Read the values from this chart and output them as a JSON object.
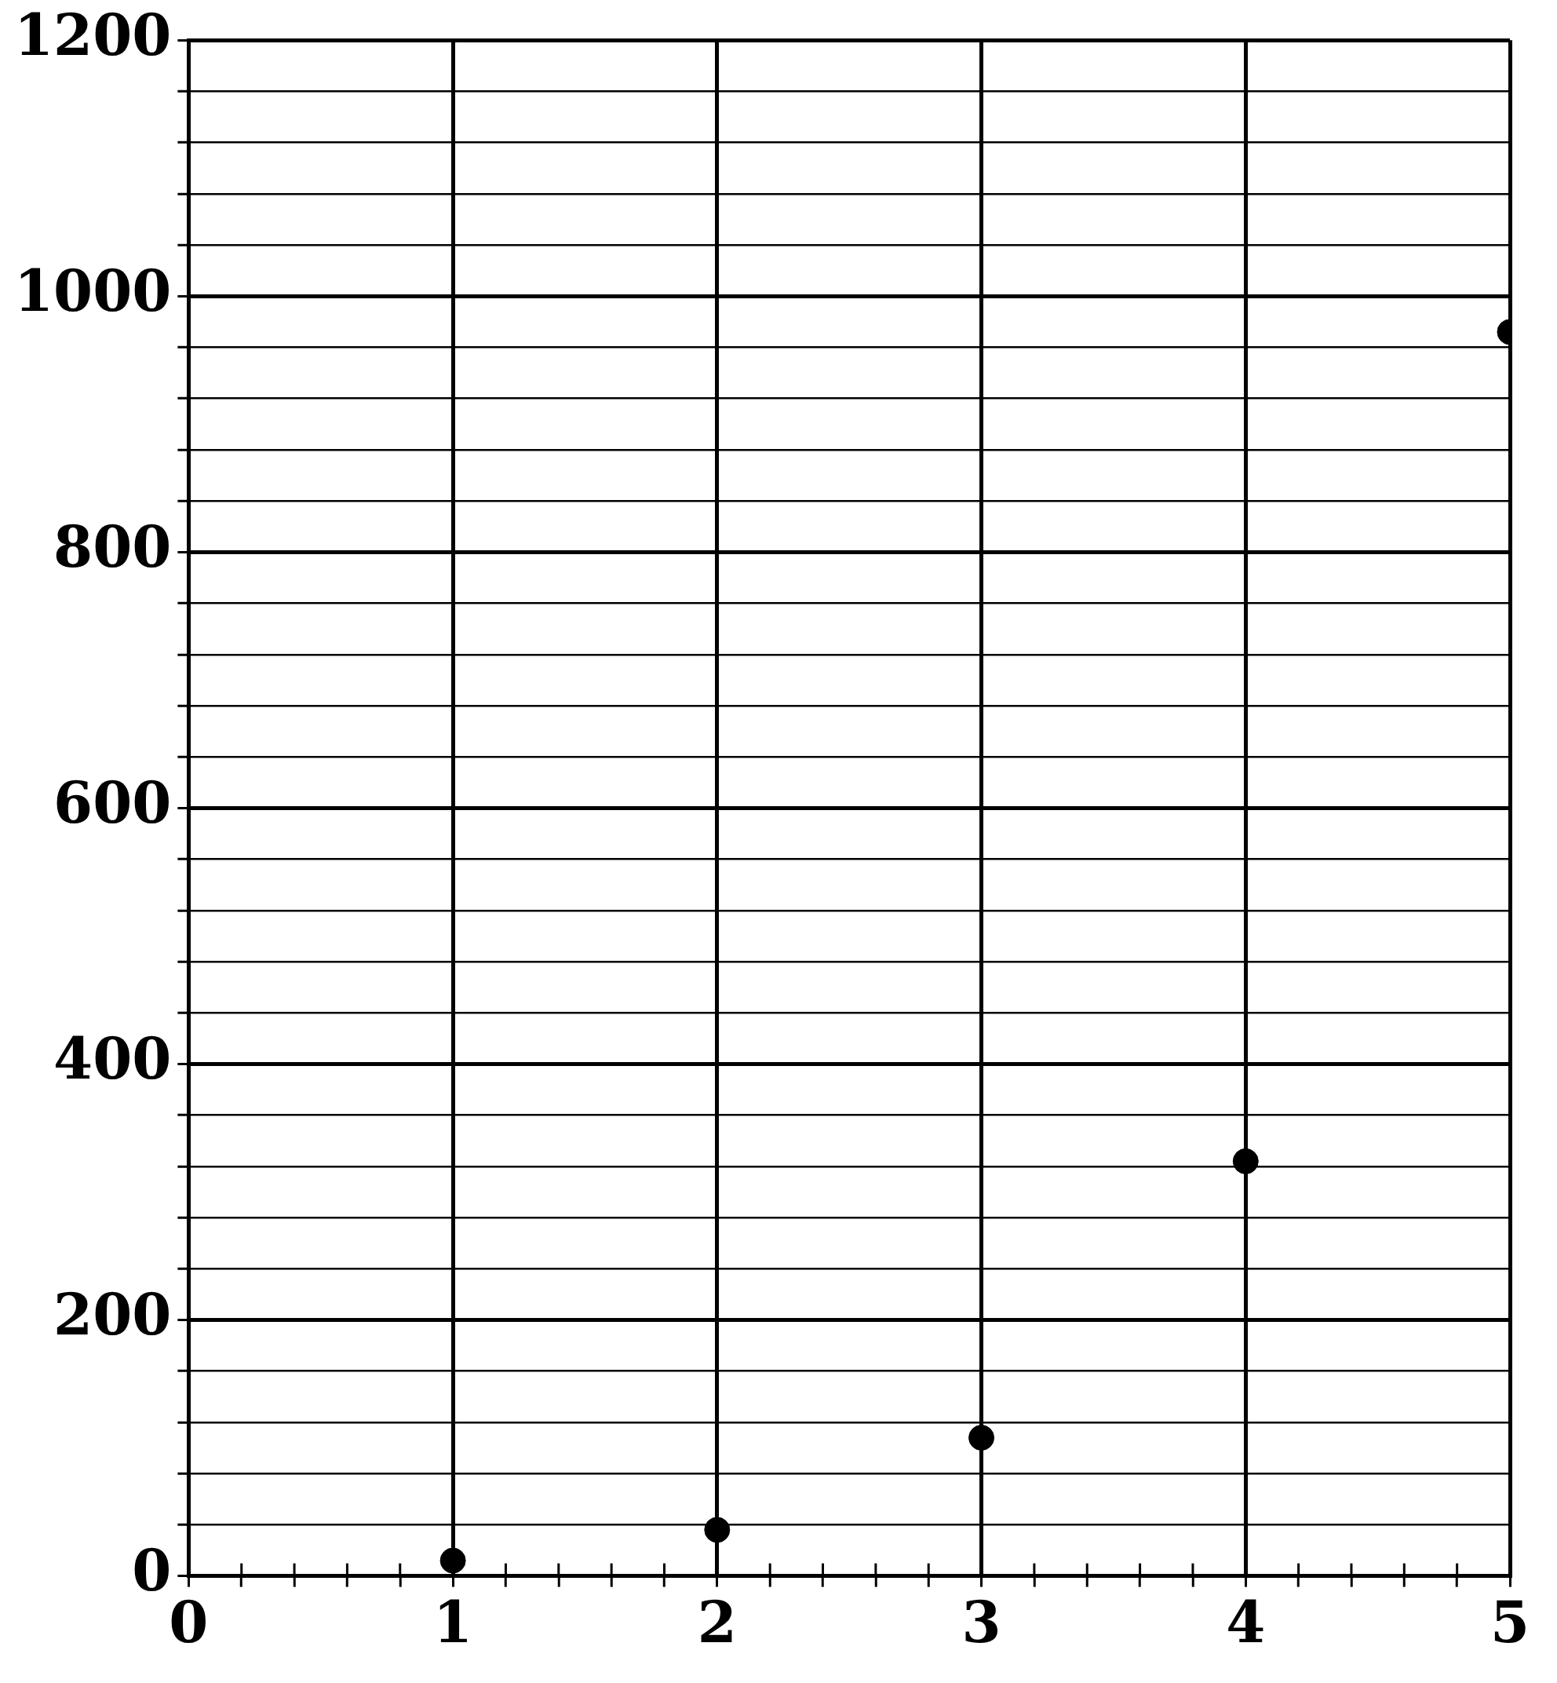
{
  "chart_data": {
    "type": "scatter",
    "x": [
      1,
      2,
      3,
      4,
      5
    ],
    "values": [
      12,
      36,
      108,
      324,
      972
    ],
    "color": "#000000",
    "marker": "circle",
    "xlim": [
      0,
      5
    ],
    "ylim": [
      0,
      1200
    ],
    "xticks": [
      0,
      {
        "value": 0.2,
        "label": null
      },
      {
        "value": 0.4,
        "label": null
      },
      {
        "value": 0.6,
        "label": null
      },
      {
        "value": 0.8,
        "label": null
      },
      1,
      {
        "value": 1.2,
        "label": null
      },
      {
        "value": 1.4,
        "label": null
      },
      {
        "value": 1.6,
        "label": null
      },
      {
        "value": 1.8,
        "label": null
      },
      2,
      {
        "value": 2.2,
        "label": null
      },
      {
        "value": 2.4,
        "label": null
      },
      {
        "value": 2.6,
        "label": null
      },
      {
        "value": 2.8,
        "label": null
      },
      3,
      {
        "value": 3.2,
        "label": null
      },
      {
        "value": 3.4,
        "label": null
      },
      {
        "value": 3.6,
        "label": null
      },
      {
        "value": 3.8,
        "label": null
      },
      4,
      {
        "value": 4.2,
        "label": null
      },
      {
        "value": 4.4,
        "label": null
      },
      {
        "value": 4.6,
        "label": null
      },
      {
        "value": 4.8,
        "label": null
      },
      5
    ],
    "yticks": [
      0,
      {
        "value": 40,
        "label": null
      },
      {
        "value": 80,
        "label": null
      },
      {
        "value": 120,
        "label": null
      },
      {
        "value": 160,
        "label": null
      },
      200,
      {
        "value": 240,
        "label": null
      },
      {
        "value": 280,
        "label": null
      },
      {
        "value": 320,
        "label": null
      },
      {
        "value": 360,
        "label": null
      },
      400,
      {
        "value": 440,
        "label": null
      },
      {
        "value": 480,
        "label": null
      },
      {
        "value": 520,
        "label": null
      },
      {
        "value": 560,
        "label": null
      },
      600,
      {
        "value": 640,
        "label": null
      },
      {
        "value": 680,
        "label": null
      },
      {
        "value": 720,
        "label": null
      },
      {
        "value": 760,
        "label": null
      },
      800,
      {
        "value": 840,
        "label": null
      },
      {
        "value": 880,
        "label": null
      },
      {
        "value": 920,
        "label": null
      },
      {
        "value": 960,
        "label": null
      },
      1000,
      {
        "value": 1040,
        "label": null
      },
      {
        "value": 1080,
        "label": null
      },
      {
        "value": 1120,
        "label": null
      },
      {
        "value": 1160,
        "label": null
      },
      1200
    ],
    "grid": true
  }
}
